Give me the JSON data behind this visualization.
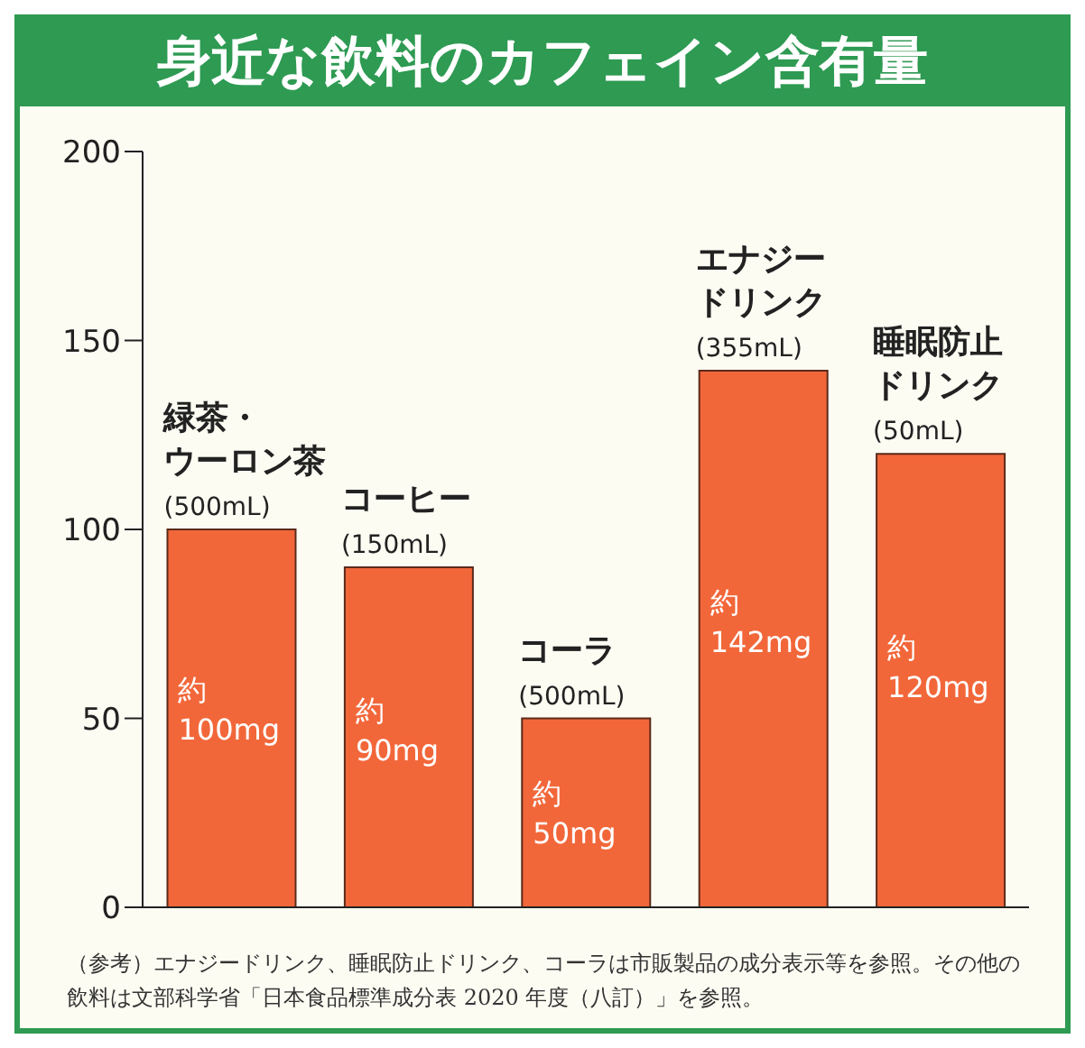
{
  "chart_data": {
    "type": "bar",
    "title": "身近な飲料のカフェイン含有量",
    "categories": [
      "緑茶・ウーロン茶(500mL)",
      "コーヒー(150mL)",
      "コーラ(500mL)",
      "エナジードリンク(355mL)",
      "睡眠防止ドリンク(50mL)"
    ],
    "values": [
      100,
      90,
      50,
      142,
      120
    ],
    "value_labels": [
      "約\n100mg",
      "約\n90mg",
      "約\n50mg",
      "約\n142mg",
      "約\n120mg"
    ],
    "color": "#f2673a",
    "ylim": [
      0,
      200
    ],
    "yticks": [
      0,
      50,
      100,
      150,
      200
    ],
    "annotations": [
      "（参考）エナジードリンク、睡眠防止ドリンク、コーラは市販製品の成分表示等を参照。その他の飲料は文部科学省「日本食品標準成分表 2020 年度（八訂）」を参照。"
    ]
  }
}
